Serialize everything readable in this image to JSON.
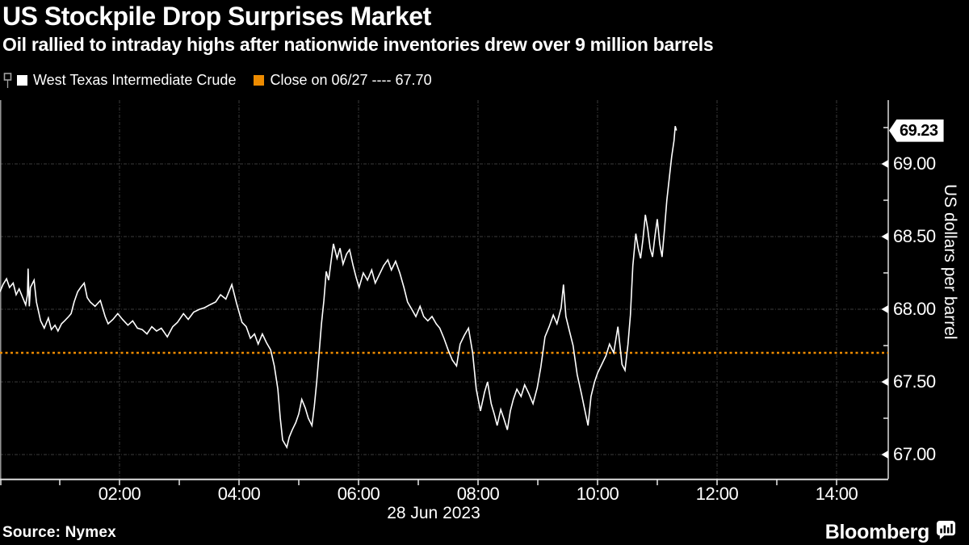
{
  "header": {
    "title": "US Stockpile Drop Surprises Market",
    "subtitle": "Oil rallied to intraday highs after nationwide inventories drew over 9 million barrels"
  },
  "legend": {
    "marker_icon": "flag-annotation-marker",
    "series_swatch_color": "#FFFFFF",
    "series_label": "West Texas Intermediate Crude",
    "close_swatch_color": "#ED8B00",
    "close_label": "Close on 06/27 ---- 67.70"
  },
  "footer": {
    "source": "Source: Nymex",
    "brand": "Bloomberg",
    "brand_mark_icon": "bar-chart-speech-bubble"
  },
  "colors": {
    "background": "#000000",
    "text": "#FFFFFF",
    "grid": "#3D3D3D",
    "axis": "#9A9A9A",
    "tick": "#E8E8E8",
    "line": "#FFFFFF",
    "reference": "#ED8B00",
    "tag_bg": "#FFFFFF",
    "tag_text": "#000000"
  },
  "chart_data": {
    "type": "line",
    "title": "US Stockpile Drop Surprises Market",
    "subtitle": "Oil rallied to intraday highs after nationwide inventories drew over 9 million barrels",
    "last_price": 69.23,
    "last_price_label": "69.23",
    "reference_line": {
      "label": "Close on 06/27",
      "value": 67.7,
      "color": "#ED8B00",
      "style": "dashed"
    },
    "x_axis": {
      "date_label": "28 Jun 2023",
      "tick_hours": [
        2,
        4,
        6,
        8,
        10,
        12,
        14
      ],
      "tick_labels": [
        "02:00",
        "04:00",
        "06:00",
        "08:00",
        "10:00",
        "12:00",
        "14:00"
      ],
      "minor_tick_hours": [
        0,
        1,
        3,
        5,
        7,
        9,
        11,
        13
      ],
      "grid_hours": [
        2,
        4,
        6,
        8,
        10,
        12,
        14
      ],
      "range_hours": [
        0,
        14.86
      ]
    },
    "y_axis": {
      "title": "US dollars per barrel",
      "ticks": [
        69.0,
        68.5,
        68.0,
        67.5,
        67.0
      ],
      "tick_labels": [
        "69.00",
        "68.50",
        "68.00",
        "67.50",
        "67.00"
      ],
      "minor_ticks": [
        69.25,
        68.75,
        68.25,
        67.75,
        67.25
      ],
      "range": [
        66.83,
        69.44
      ],
      "grid": true
    },
    "series": [
      {
        "name": "West Texas Intermediate Crude",
        "color": "#FFFFFF",
        "points": [
          [
            0,
            68.12
          ],
          [
            0.05,
            68.17
          ],
          [
            0.11,
            68.21
          ],
          [
            0.16,
            68.15
          ],
          [
            0.22,
            68.18
          ],
          [
            0.27,
            68.1
          ],
          [
            0.32,
            68.14
          ],
          [
            0.38,
            68.08
          ],
          [
            0.43,
            68.03
          ],
          [
            0.46,
            68.1
          ],
          [
            0.47,
            68.28
          ],
          [
            0.49,
            68.02
          ],
          [
            0.51,
            68.15
          ],
          [
            0.57,
            68.2
          ],
          [
            0.61,
            68.05
          ],
          [
            0.68,
            67.92
          ],
          [
            0.74,
            67.87
          ],
          [
            0.81,
            67.94
          ],
          [
            0.86,
            67.86
          ],
          [
            0.92,
            67.89
          ],
          [
            0.97,
            67.85
          ],
          [
            1.03,
            67.9
          ],
          [
            1.08,
            67.92
          ],
          [
            1.15,
            67.95
          ],
          [
            1.19,
            67.97
          ],
          [
            1.24,
            68.05
          ],
          [
            1.3,
            68.12
          ],
          [
            1.35,
            68.15
          ],
          [
            1.41,
            68.18
          ],
          [
            1.46,
            68.08
          ],
          [
            1.51,
            68.05
          ],
          [
            1.59,
            68.02
          ],
          [
            1.68,
            68.06
          ],
          [
            1.76,
            67.95
          ],
          [
            1.81,
            67.9
          ],
          [
            1.89,
            67.93
          ],
          [
            1.97,
            67.97
          ],
          [
            2.05,
            67.93
          ],
          [
            2.14,
            67.89
          ],
          [
            2.22,
            67.92
          ],
          [
            2.3,
            67.87
          ],
          [
            2.38,
            67.86
          ],
          [
            2.46,
            67.83
          ],
          [
            2.54,
            67.88
          ],
          [
            2.62,
            67.85
          ],
          [
            2.7,
            67.87
          ],
          [
            2.8,
            67.81
          ],
          [
            2.89,
            67.88
          ],
          [
            2.97,
            67.91
          ],
          [
            3.07,
            67.97
          ],
          [
            3.15,
            67.93
          ],
          [
            3.24,
            67.98
          ],
          [
            3.34,
            68.0
          ],
          [
            3.42,
            68.01
          ],
          [
            3.51,
            68.03
          ],
          [
            3.61,
            68.05
          ],
          [
            3.69,
            68.1
          ],
          [
            3.78,
            68.07
          ],
          [
            3.88,
            68.17
          ],
          [
            3.96,
            68.04
          ],
          [
            4.05,
            67.91
          ],
          [
            4.12,
            67.88
          ],
          [
            4.19,
            67.8
          ],
          [
            4.26,
            67.83
          ],
          [
            4.32,
            67.76
          ],
          [
            4.39,
            67.83
          ],
          [
            4.46,
            67.77
          ],
          [
            4.53,
            67.72
          ],
          [
            4.59,
            67.61
          ],
          [
            4.65,
            67.45
          ],
          [
            4.69,
            67.25
          ],
          [
            4.73,
            67.1
          ],
          [
            4.8,
            67.05
          ],
          [
            4.84,
            67.12
          ],
          [
            4.89,
            67.17
          ],
          [
            4.95,
            67.22
          ],
          [
            5.0,
            67.28
          ],
          [
            5.05,
            67.38
          ],
          [
            5.11,
            67.32
          ],
          [
            5.16,
            67.25
          ],
          [
            5.22,
            67.2
          ],
          [
            5.26,
            67.33
          ],
          [
            5.3,
            67.5
          ],
          [
            5.34,
            67.7
          ],
          [
            5.38,
            67.9
          ],
          [
            5.42,
            68.06
          ],
          [
            5.46,
            68.26
          ],
          [
            5.5,
            68.2
          ],
          [
            5.54,
            68.33
          ],
          [
            5.58,
            68.45
          ],
          [
            5.64,
            68.35
          ],
          [
            5.69,
            68.42
          ],
          [
            5.74,
            68.31
          ],
          [
            5.8,
            68.38
          ],
          [
            5.85,
            68.41
          ],
          [
            5.91,
            68.3
          ],
          [
            5.96,
            68.22
          ],
          [
            6.01,
            68.15
          ],
          [
            6.08,
            68.25
          ],
          [
            6.15,
            68.2
          ],
          [
            6.22,
            68.27
          ],
          [
            6.28,
            68.18
          ],
          [
            6.35,
            68.24
          ],
          [
            6.42,
            68.3
          ],
          [
            6.49,
            68.34
          ],
          [
            6.55,
            68.27
          ],
          [
            6.62,
            68.33
          ],
          [
            6.69,
            68.25
          ],
          [
            6.76,
            68.15
          ],
          [
            6.82,
            68.05
          ],
          [
            6.89,
            68.0
          ],
          [
            6.96,
            67.95
          ],
          [
            7.03,
            68.02
          ],
          [
            7.09,
            67.95
          ],
          [
            7.16,
            67.92
          ],
          [
            7.23,
            67.95
          ],
          [
            7.3,
            67.9
          ],
          [
            7.36,
            67.87
          ],
          [
            7.43,
            67.8
          ],
          [
            7.5,
            67.72
          ],
          [
            7.57,
            67.65
          ],
          [
            7.64,
            67.61
          ],
          [
            7.7,
            67.76
          ],
          [
            7.77,
            67.82
          ],
          [
            7.84,
            67.87
          ],
          [
            7.91,
            67.7
          ],
          [
            7.97,
            67.45
          ],
          [
            8.04,
            67.3
          ],
          [
            8.11,
            67.43
          ],
          [
            8.16,
            67.5
          ],
          [
            8.22,
            67.35
          ],
          [
            8.27,
            67.28
          ],
          [
            8.32,
            67.2
          ],
          [
            8.38,
            67.31
          ],
          [
            8.43,
            67.25
          ],
          [
            8.49,
            67.17
          ],
          [
            8.54,
            67.3
          ],
          [
            8.59,
            67.38
          ],
          [
            8.65,
            67.45
          ],
          [
            8.72,
            67.4
          ],
          [
            8.78,
            67.48
          ],
          [
            8.85,
            67.42
          ],
          [
            8.92,
            67.35
          ],
          [
            8.99,
            67.46
          ],
          [
            9.05,
            67.6
          ],
          [
            9.12,
            67.81
          ],
          [
            9.19,
            67.88
          ],
          [
            9.26,
            67.96
          ],
          [
            9.32,
            67.9
          ],
          [
            9.39,
            68.01
          ],
          [
            9.43,
            68.17
          ],
          [
            9.47,
            67.95
          ],
          [
            9.53,
            67.85
          ],
          [
            9.59,
            67.75
          ],
          [
            9.66,
            67.55
          ],
          [
            9.73,
            67.42
          ],
          [
            9.8,
            67.28
          ],
          [
            9.84,
            67.2
          ],
          [
            9.89,
            67.4
          ],
          [
            9.95,
            67.5
          ],
          [
            10.0,
            67.56
          ],
          [
            10.07,
            67.62
          ],
          [
            10.14,
            67.68
          ],
          [
            10.2,
            67.76
          ],
          [
            10.27,
            67.7
          ],
          [
            10.34,
            67.88
          ],
          [
            10.41,
            67.62
          ],
          [
            10.46,
            67.58
          ],
          [
            10.51,
            67.76
          ],
          [
            10.55,
            67.96
          ],
          [
            10.59,
            68.3
          ],
          [
            10.64,
            68.52
          ],
          [
            10.68,
            68.42
          ],
          [
            10.72,
            68.35
          ],
          [
            10.76,
            68.48
          ],
          [
            10.8,
            68.65
          ],
          [
            10.84,
            68.55
          ],
          [
            10.88,
            68.42
          ],
          [
            10.92,
            68.36
          ],
          [
            10.96,
            68.5
          ],
          [
            11.0,
            68.62
          ],
          [
            11.04,
            68.45
          ],
          [
            11.08,
            68.36
          ],
          [
            11.12,
            68.55
          ],
          [
            11.16,
            68.75
          ],
          [
            11.2,
            68.9
          ],
          [
            11.24,
            69.05
          ],
          [
            11.28,
            69.16
          ],
          [
            11.3,
            69.26
          ],
          [
            11.32,
            69.23
          ]
        ]
      }
    ]
  }
}
